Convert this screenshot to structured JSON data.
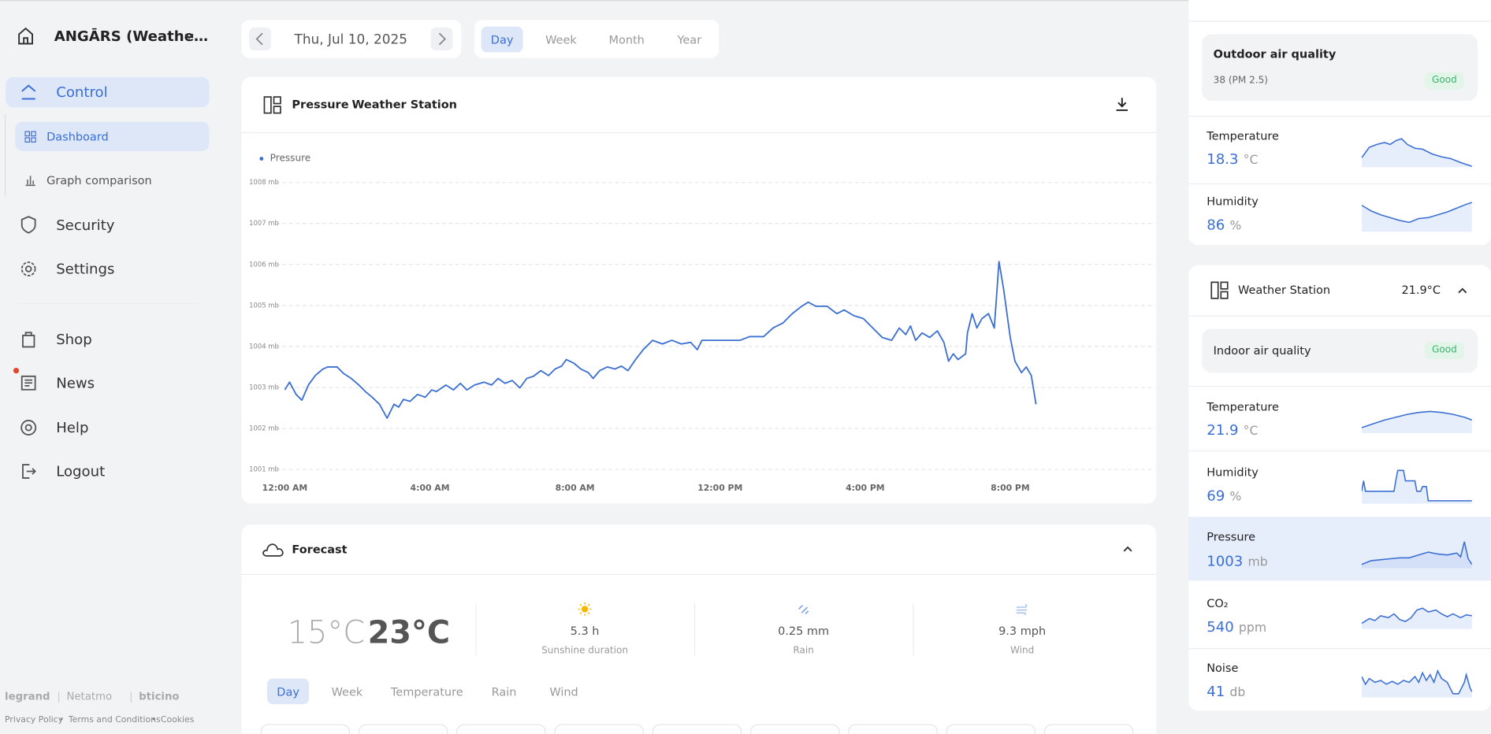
{
  "sidebar": {
    "home_name": "ANGĀRS (Weathe…",
    "nav": [
      "Control",
      "Dashboard",
      "Graph comparison",
      "Security",
      "Settings",
      "Shop",
      "News",
      "Help",
      "Logout"
    ],
    "brands": [
      "legrand",
      "Netatmo",
      "bticino"
    ],
    "links": [
      "Privacy Policy",
      "Terms and Conditions",
      "Cookies"
    ]
  },
  "toolbar": {
    "date": "Thu, Jul 10, 2025",
    "periods": [
      "Day",
      "Week",
      "Month",
      "Year"
    ]
  },
  "chart_data": {
    "type": "line",
    "title": "Pressure",
    "separator": "-",
    "subtitle": "Weather Station",
    "x": [
      0,
      0.13,
      0.31,
      0.47,
      0.65,
      0.84,
      1.05,
      1.18,
      1.44,
      1.62,
      1.83,
      2.04,
      2.22,
      2.41,
      2.61,
      2.82,
      3.01,
      3.14,
      3.27,
      3.45,
      3.66,
      3.87,
      4.05,
      4.18,
      4.44,
      4.65,
      4.84,
      5.02,
      5.23,
      5.49,
      5.7,
      5.88,
      6.07,
      6.27,
      6.48,
      6.67,
      6.85,
      7.06,
      7.27,
      7.45,
      7.63,
      7.76,
      7.97,
      8.16,
      8.37,
      8.5,
      8.68,
      8.89,
      9.1,
      9.28,
      9.46,
      9.67,
      9.88,
      10.14,
      10.41,
      10.67,
      10.93,
      11.19,
      11.37,
      11.5,
      12.03,
      12.55,
      12.81,
      13.2,
      13.46,
      13.73,
      13.99,
      14.25,
      14.43,
      14.64,
      14.95,
      15.22,
      15.42,
      15.69,
      15.95,
      16.21,
      16.47,
      16.73,
      16.94,
      17.12,
      17.25,
      17.39,
      17.57,
      17.78,
      17.99,
      18.17,
      18.3,
      18.43,
      18.56,
      18.77,
      18.82,
      18.95,
      19.08,
      19.22,
      19.4,
      19.56,
      19.69,
      19.82,
      20,
      20.13,
      20.31,
      20.44,
      20.58,
      20.71
    ],
    "series": [
      {
        "name": "Pressure",
        "color": "#3b6fd4",
        "values": [
          1002.94,
          1003.13,
          1002.83,
          1002.69,
          1003.06,
          1003.29,
          1003.45,
          1003.5,
          1003.5,
          1003.34,
          1003.22,
          1003.06,
          1002.9,
          1002.76,
          1002.59,
          1002.25,
          1002.59,
          1002.52,
          1002.71,
          1002.66,
          1002.83,
          1002.76,
          1002.94,
          1002.9,
          1003.06,
          1002.94,
          1003.1,
          1002.94,
          1003.06,
          1003.13,
          1003.06,
          1003.22,
          1003.1,
          1003.17,
          1002.99,
          1003.22,
          1003.27,
          1003.41,
          1003.29,
          1003.45,
          1003.52,
          1003.68,
          1003.59,
          1003.45,
          1003.36,
          1003.22,
          1003.41,
          1003.5,
          1003.45,
          1003.52,
          1003.41,
          1003.68,
          1003.92,
          1004.15,
          1004.06,
          1004.15,
          1004.06,
          1004.1,
          1003.92,
          1004.15,
          1004.15,
          1004.15,
          1004.24,
          1004.24,
          1004.45,
          1004.57,
          1004.8,
          1004.98,
          1005.08,
          1004.98,
          1004.98,
          1004.8,
          1004.89,
          1004.75,
          1004.68,
          1004.45,
          1004.22,
          1004.15,
          1004.45,
          1004.29,
          1004.5,
          1004.15,
          1004.33,
          1004.22,
          1004.38,
          1004.1,
          1003.64,
          1003.82,
          1003.68,
          1003.82,
          1004.33,
          1004.8,
          1004.45,
          1004.68,
          1004.8,
          1004.45,
          1006.07,
          1005.38,
          1004.22,
          1003.64,
          1003.36,
          1003.5,
          1003.29,
          1002.59
        ]
      }
    ],
    "xlim": [
      -0.25,
      24
    ],
    "xticks": [
      {
        "value": 0,
        "label": "12:00 AM"
      },
      {
        "value": 4,
        "label": "4:00 AM"
      },
      {
        "value": 8,
        "label": "8:00 AM"
      },
      {
        "value": 12,
        "label": "12:00 PM"
      },
      {
        "value": 16,
        "label": "4:00 PM"
      },
      {
        "value": 20,
        "label": "8:00 PM"
      }
    ],
    "ylim": [
      1001,
      1008
    ],
    "yticks": [
      {
        "value": 1001,
        "label": "1001 mb"
      },
      {
        "value": 1002,
        "label": "1002 mb"
      },
      {
        "value": 1003,
        "label": "1003 mb"
      },
      {
        "value": 1004,
        "label": "1004 mb"
      },
      {
        "value": 1005,
        "label": "1005 mb"
      },
      {
        "value": 1006,
        "label": "1006 mb"
      },
      {
        "value": 1007,
        "label": "1007 mb"
      },
      {
        "value": 1008,
        "label": "1008 mb"
      }
    ],
    "grid": true
  },
  "forecast": {
    "title": "Forecast",
    "min": "15°C",
    "max": "23°C",
    "stats": [
      {
        "value": "5.3 h",
        "label": "Sunshine duration"
      },
      {
        "value": "0.25 mm",
        "label": "Rain"
      },
      {
        "value": "9.3 mph",
        "label": "Wind"
      }
    ],
    "tabs": [
      "Day",
      "Week",
      "Temperature",
      "Rain",
      "Wind"
    ]
  },
  "outdoor": {
    "air_quality": {
      "label": "Outdoor air quality",
      "value": "38 (PM 2.5)",
      "status": "Good"
    },
    "metrics": [
      {
        "label": "Temperature",
        "value": "18.3",
        "unit": "°C"
      },
      {
        "label": "Humidity",
        "value": "86",
        "unit": "%"
      }
    ]
  },
  "station": {
    "name": "Weather Station",
    "temp": "21.9°C",
    "air_quality": {
      "label": "Indoor air quality",
      "status": "Good"
    },
    "metrics": [
      {
        "label": "Temperature",
        "value": "21.9",
        "unit": "°C"
      },
      {
        "label": "Humidity",
        "value": "69",
        "unit": "%"
      },
      {
        "label": "Pressure",
        "value": "1003",
        "unit": "mb"
      },
      {
        "label": "CO₂",
        "value": "540",
        "unit": "ppm"
      },
      {
        "label": "Noise",
        "value": "41",
        "unit": "db"
      }
    ]
  }
}
